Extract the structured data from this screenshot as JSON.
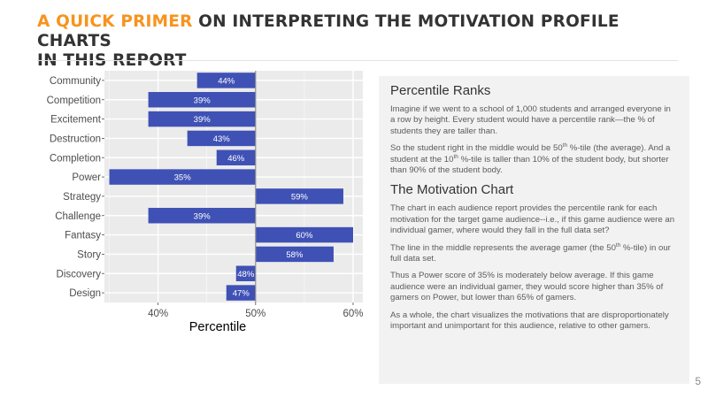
{
  "header": {
    "title_accent": "A QUICK PRIMER",
    "title_rest": " ON INTERPRETING THE MOTIVATION PROFILE CHARTS",
    "title_line2": "IN THIS REPORT"
  },
  "chart_data": {
    "type": "bar",
    "orientation": "horizontal",
    "baseline": 50,
    "categories": [
      "Community",
      "Competition",
      "Excitement",
      "Destruction",
      "Completion",
      "Power",
      "Strategy",
      "Challenge",
      "Fantasy",
      "Story",
      "Discovery",
      "Design"
    ],
    "values": [
      44,
      39,
      39,
      43,
      46,
      35,
      59,
      39,
      60,
      58,
      48,
      47
    ],
    "value_labels": [
      "44%",
      "39%",
      "39%",
      "43%",
      "46%",
      "35%",
      "59%",
      "39%",
      "60%",
      "58%",
      "48%",
      "47%"
    ],
    "xlabel": "Percentile",
    "xlim": [
      34.5,
      61
    ],
    "xticks": [
      40,
      50,
      60
    ],
    "xtick_labels": [
      "40%",
      "50%",
      "60%"
    ],
    "grid": true,
    "bar_color": "#3f51b5",
    "panel_color": "#ebebeb"
  },
  "panel": {
    "heading1": "Percentile Ranks",
    "p1": "Imagine if we went to a school of 1,000 students and arranged everyone in a row by height. Every student would have a percentile rank—the % of students they are taller than.",
    "p2_a": "So the student right in the middle would be 50",
    "p2_sup1": "th",
    "p2_b": " %-tile (the average). And a student at the 10",
    "p2_sup2": "th",
    "p2_c": " %-tile is taller than 10% of the student body, but shorter than 90% of the student body.",
    "heading2": "The Motivation Chart",
    "p3": "The chart in each audience report provides the percentile rank for each motivation for the target game audience--i.e., if this game audience were an individual gamer, where would they fall in the full data set?",
    "p4_a": "The line in the middle represents the average gamer (the 50",
    "p4_sup": "th",
    "p4_b": " %-tile) in our full data set.",
    "p5": "Thus a Power score of 35% is moderately below average. If this game audience were an individual gamer, they would score higher than 35% of gamers on Power, but lower than 65% of gamers.",
    "p6": "As a whole, the chart visualizes the motivations that are disproportionately important and unimportant for this audience, relative to other gamers."
  },
  "footer": {
    "page_number": "5"
  }
}
